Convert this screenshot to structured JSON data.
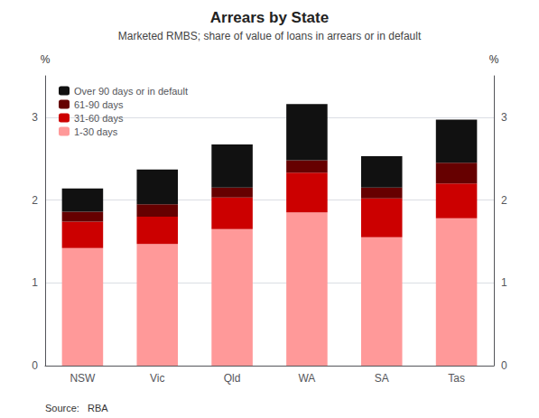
{
  "chart_data": {
    "type": "bar",
    "stacked": true,
    "title": "Arrears by State",
    "subtitle": "Marketed RMBS; share of value of loans in arrears or in default",
    "annotations": [
      "Source:   RBA"
    ],
    "ylabel": "%",
    "y2label": "%",
    "categories": [
      "NSW",
      "Vic",
      "Qld",
      "WA",
      "SA",
      "Tas"
    ],
    "series": [
      {
        "name": "1-30 days",
        "color": "#FF9999",
        "values": [
          1.42,
          1.47,
          1.65,
          1.85,
          1.55,
          1.78
        ]
      },
      {
        "name": "31-60 days",
        "color": "#CC0000",
        "values": [
          0.32,
          0.33,
          0.38,
          0.48,
          0.47,
          0.42
        ]
      },
      {
        "name": "61-90 days",
        "color": "#660000",
        "values": [
          0.12,
          0.15,
          0.12,
          0.15,
          0.13,
          0.25
        ]
      },
      {
        "name": "Over 90 days or in default",
        "color": "#111111",
        "values": [
          0.28,
          0.42,
          0.52,
          0.68,
          0.38,
          0.52
        ]
      }
    ],
    "ylim": [
      0,
      3.5
    ],
    "yticks": [
      0,
      1,
      2,
      3
    ],
    "y2lim": [
      0,
      3.5
    ],
    "y2ticks": [
      0,
      1,
      2,
      3
    ],
    "grid": true,
    "legend": "upper left"
  }
}
